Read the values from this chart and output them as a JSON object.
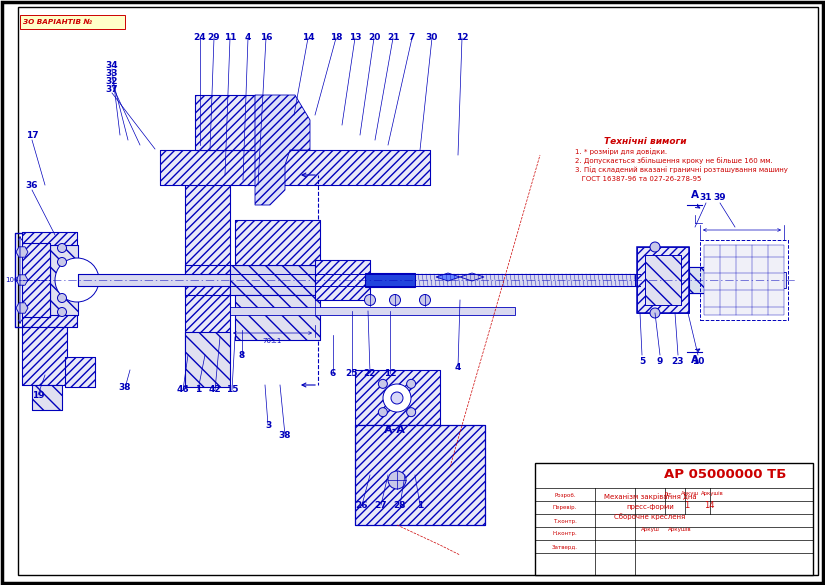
{
  "bg_color": "#ffffff",
  "border_color": "#000000",
  "dc": "#0000bb",
  "rc": "#cc0000",
  "stamp_title": "АР 05000000 ТБ",
  "stamp_desc1": "Механізм закрівання дна",
  "stamp_desc2": "пресс-форми",
  "stamp_desc3": "Сборочне кресленя",
  "tn_title": "Технічні вимоги",
  "tn1": "1. * розміри для довідки.",
  "tn2": "2. Допускається збільшення кроку не більше 160 мм.",
  "tn3": "3. Під складений вказані граничні розташування машину",
  "tn4": "   ГОСТ 16387-96 та 027-26-278-95",
  "label_tl": "ЗО ВАРІАНТІВ №"
}
